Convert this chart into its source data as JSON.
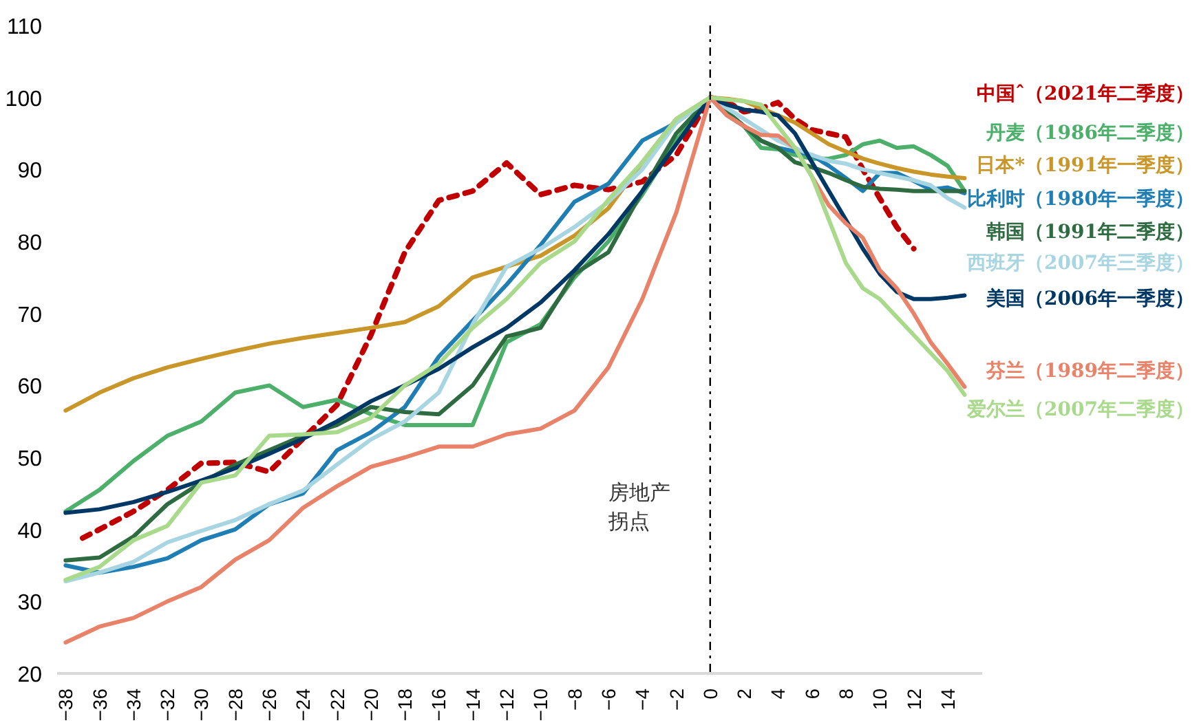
{
  "chart_data": {
    "type": "line",
    "x": [
      -38,
      -36,
      -34,
      -32,
      -30,
      -28,
      -26,
      -24,
      -22,
      -20,
      -18,
      -16,
      -14,
      -12,
      -10,
      -8,
      -6,
      -4,
      -2,
      0,
      1,
      2,
      3,
      4,
      5,
      6,
      7,
      8,
      9,
      10,
      11,
      12,
      13,
      14,
      15
    ],
    "xlim": [
      -38.5,
      16
    ],
    "xticks": [
      -38,
      -36,
      -34,
      -32,
      -30,
      -28,
      -26,
      -24,
      -22,
      -20,
      -18,
      -16,
      -14,
      -12,
      -10,
      -8,
      -6,
      -4,
      -2,
      0,
      2,
      4,
      6,
      8,
      10,
      12,
      14
    ],
    "ylim": [
      20,
      110
    ],
    "yticks": [
      20,
      30,
      40,
      50,
      60,
      70,
      80,
      90,
      100,
      110
    ],
    "grid": false,
    "series": [
      {
        "name": "中国ˆ（2021年二季度）",
        "color": "#c00000",
        "line_style": "dashed",
        "x": [
          -37,
          -36,
          -34,
          -32,
          -30,
          -28,
          -26,
          -24,
          -22,
          -20,
          -18,
          -16,
          -14,
          -12,
          -10,
          -8,
          -6,
          -4,
          -2,
          0,
          1,
          2,
          3,
          4,
          5,
          6,
          7,
          8,
          9,
          10,
          11,
          12
        ],
        "values": [
          38.8,
          40,
          42.5,
          45.5,
          49.2,
          49.3,
          48,
          52.6,
          57.3,
          67,
          78.5,
          85.7,
          87,
          90.9,
          86.5,
          87.8,
          87.2,
          88.3,
          92,
          100,
          99.4,
          98,
          98.5,
          99.3,
          97,
          95.5,
          95,
          94.5,
          90,
          86,
          82,
          79
        ]
      },
      {
        "name": "丹麦（1986年二季度）",
        "color": "#4caf6a",
        "values": [
          42.5,
          45.5,
          49.5,
          53,
          55,
          59,
          60,
          57,
          58,
          56,
          54.5,
          54.5,
          54.5,
          66,
          68.5,
          75,
          80,
          86.5,
          94,
          100,
          98,
          96,
          93,
          92.8,
          92,
          91.5,
          91.5,
          92,
          93.5,
          94,
          93,
          93.2,
          92,
          90.5,
          87
        ]
      },
      {
        "name": "日本*（1991年一季度）",
        "color": "#c9962a",
        "values": [
          56.5,
          59,
          61,
          62.5,
          63.7,
          64.8,
          65.8,
          66.6,
          67.3,
          68,
          68.8,
          71,
          75,
          76.5,
          78,
          80.8,
          84.6,
          91,
          97,
          100,
          99.8,
          99.5,
          98.5,
          97.5,
          96.5,
          95,
          93.5,
          92.5,
          91.5,
          90.8,
          90.2,
          89.7,
          89.3,
          89,
          88.8
        ]
      },
      {
        "name": "比利时（1980年一季度）",
        "color": "#1f7fb4",
        "values": [
          35,
          34,
          34.8,
          36,
          38.5,
          40,
          43.5,
          45,
          51,
          53.5,
          57,
          64,
          69,
          74,
          79.5,
          85.5,
          88,
          94,
          96.5,
          100,
          97.5,
          96,
          94,
          93,
          92.5,
          92,
          90.5,
          88.8,
          87,
          89.5,
          89.5,
          88.4,
          87.2,
          87.5,
          86.7
        ]
      },
      {
        "name": "韩国（1991年二季度）",
        "color": "#2e6b40",
        "values": [
          35.7,
          36.1,
          39,
          43.5,
          46.5,
          49,
          51,
          53,
          54.5,
          57,
          56.3,
          56,
          60,
          66.8,
          68,
          75.5,
          78.5,
          87,
          95,
          100,
          98,
          96,
          94,
          93,
          91,
          90.3,
          89.5,
          88.5,
          87.6,
          87.3,
          87.2,
          87,
          87,
          87,
          87
        ]
      },
      {
        "name": "西班牙（2007年三季度）",
        "color": "#a8d5e2",
        "values": [
          32.8,
          34,
          35.5,
          38.2,
          39.8,
          41.3,
          43.5,
          45.4,
          49,
          52.5,
          55,
          59,
          68.5,
          76.5,
          79,
          82,
          85.5,
          90,
          96.5,
          100,
          98.5,
          97,
          95.5,
          94,
          93,
          92,
          91.2,
          90.8,
          90,
          89.5,
          89,
          88.5,
          87.8,
          86,
          84.7
        ]
      },
      {
        "name": "美国（2006年一季度）",
        "color": "#003865",
        "values": [
          42.3,
          42.8,
          43.8,
          45.2,
          46.8,
          48.5,
          50.5,
          52.6,
          55,
          57.8,
          60,
          62.3,
          65.3,
          68,
          71.5,
          76,
          81,
          87,
          93.5,
          100,
          99,
          98.3,
          98,
          97.5,
          95,
          91,
          87,
          83,
          79,
          75.5,
          73,
          72,
          72,
          72.2,
          72.5
        ]
      },
      {
        "name": "芬兰（1989年二季度）",
        "color": "#e8836a",
        "values": [
          24.3,
          26.5,
          27.7,
          30,
          32,
          35.8,
          38.5,
          43,
          46,
          48.7,
          50,
          51.5,
          51.5,
          53.2,
          54,
          56.5,
          62.5,
          72,
          84,
          100,
          97.5,
          96,
          94.8,
          94.7,
          93,
          89,
          85,
          82.5,
          80.5,
          76,
          73.5,
          70,
          66,
          63,
          59.8
        ]
      },
      {
        "name": "爱尔兰（2007年二季度）",
        "color": "#a9d98b",
        "values": [
          33,
          34.8,
          38.5,
          40.5,
          46.5,
          47.5,
          53,
          53.2,
          53.5,
          55.5,
          60,
          63,
          68,
          72,
          77,
          80,
          85.8,
          91,
          97,
          100,
          99.7,
          99.5,
          99,
          96,
          93,
          89,
          83,
          77,
          73.5,
          72,
          69.5,
          67,
          64.5,
          62,
          58.7
        ]
      }
    ],
    "ref_lines": [
      {
        "axis": "x",
        "value": 0,
        "label": "房地产拐点",
        "color": "#000000",
        "line_style": "dashdot"
      }
    ]
  }
}
